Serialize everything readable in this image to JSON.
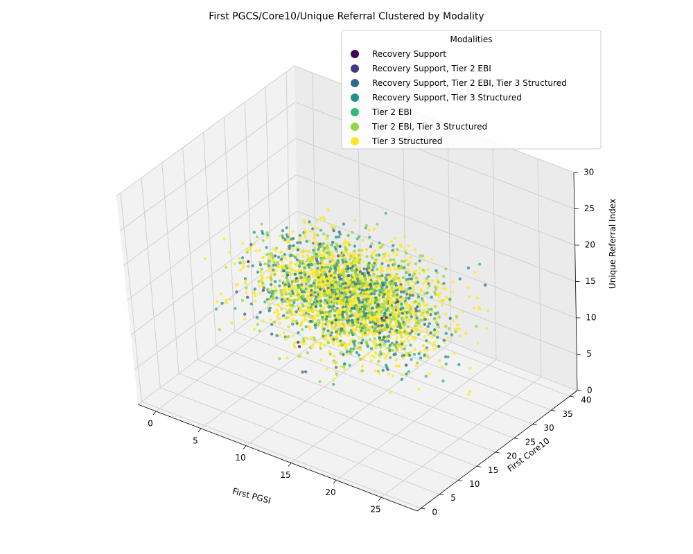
{
  "chart_data": {
    "type": "scatter",
    "title": "First PGCS/Core10/Unique Referral Clustered by Modality",
    "xlabel": "First PGSI",
    "ylabel": "First Core10",
    "zlabel": "Unique Referral Index",
    "xlim": [
      -2,
      29
    ],
    "ylim": [
      -1,
      42
    ],
    "zlim": [
      0,
      30
    ],
    "x_ticks": [
      0,
      5,
      10,
      15,
      20,
      25
    ],
    "y_ticks": [
      0,
      5,
      10,
      15,
      20,
      25,
      30,
      35,
      40
    ],
    "z_ticks": [
      0,
      5,
      10,
      15,
      20,
      25,
      30
    ],
    "grid": true,
    "legend": {
      "title": "Modalities",
      "position": "top-right",
      "entries": [
        {
          "name": "Recovery Support",
          "color": "#440154"
        },
        {
          "name": "Recovery Support, Tier 2 EBI",
          "color": "#443a83"
        },
        {
          "name": "Recovery Support, Tier 2 EBI, Tier 3 Structured",
          "color": "#31688e"
        },
        {
          "name": "Recovery Support, Tier 3 Structured",
          "color": "#21918c"
        },
        {
          "name": "Tier 2 EBI",
          "color": "#35b779"
        },
        {
          "name": "Tier 2 EBI, Tier 3 Structured",
          "color": "#90d743"
        },
        {
          "name": "Tier 3 Structured",
          "color": "#fde725"
        }
      ]
    },
    "series_weights": [
      0.004,
      0.01,
      0.06,
      0.16,
      0.06,
      0.2,
      0.51
    ],
    "point_count": 3200
  }
}
